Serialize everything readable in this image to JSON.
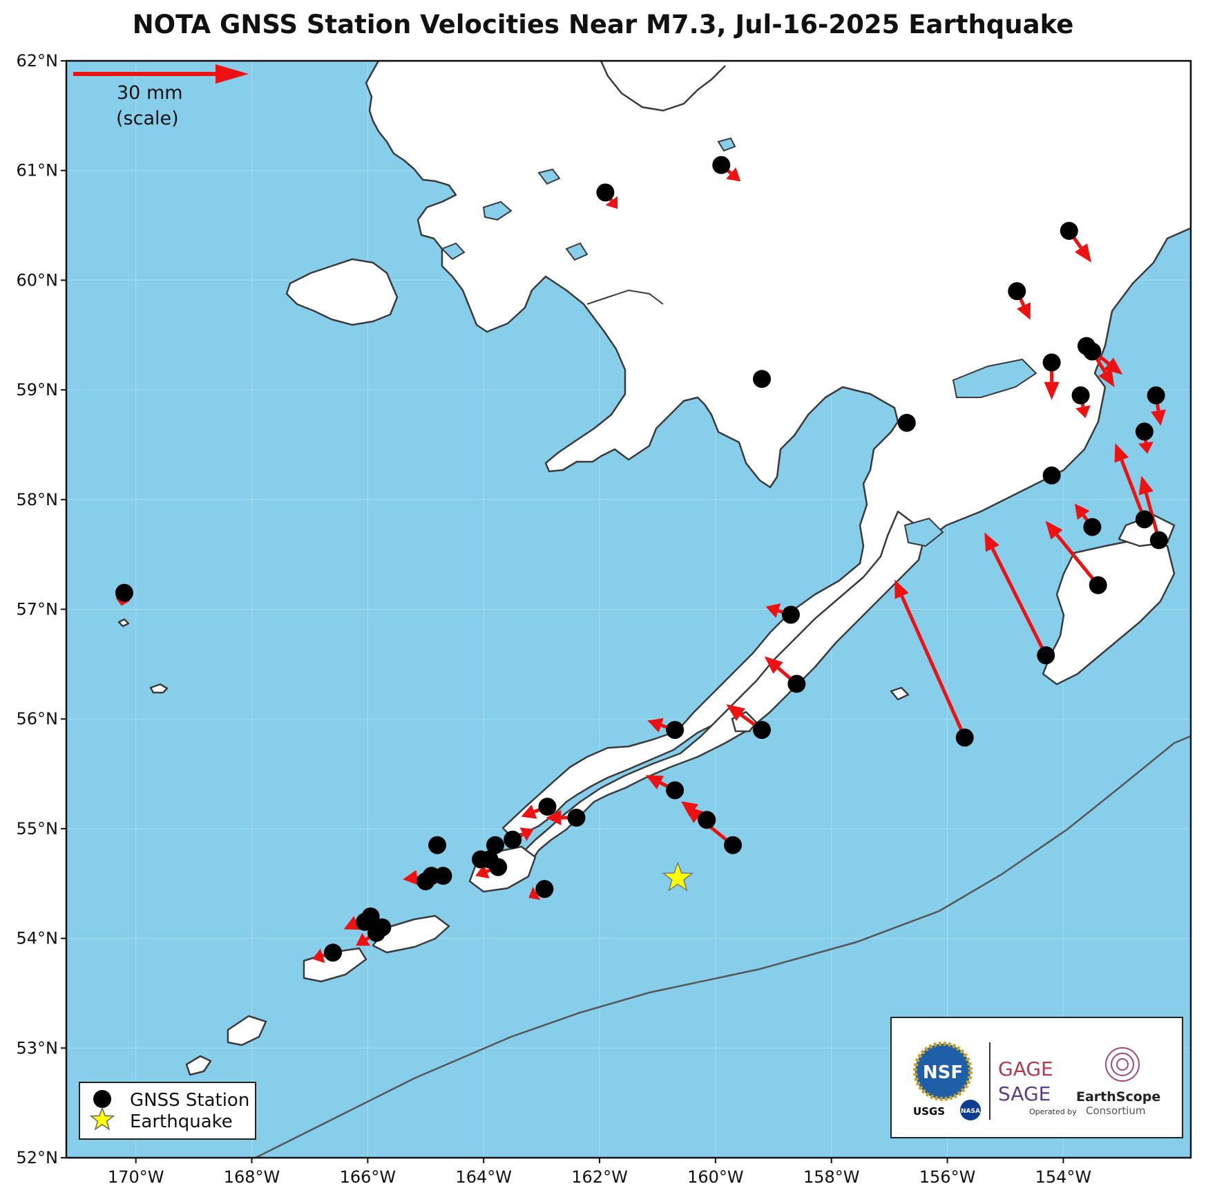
{
  "title": "NOTA GNSS Station Velocities Near M7.3, Jul-16-2025 Earthquake",
  "map": {
    "lon_range": [
      -171.2,
      -151.8
    ],
    "lat_range": [
      52.0,
      62.0
    ],
    "lat_ticks": [
      {
        "lat": 62,
        "label": "62°N"
      },
      {
        "lat": 61,
        "label": "61°N"
      },
      {
        "lat": 60,
        "label": "60°N"
      },
      {
        "lat": 59,
        "label": "59°N"
      },
      {
        "lat": 58,
        "label": "58°N"
      },
      {
        "lat": 57,
        "label": "57°N"
      },
      {
        "lat": 56,
        "label": "56°N"
      },
      {
        "lat": 55,
        "label": "55°N"
      },
      {
        "lat": 54,
        "label": "54°N"
      },
      {
        "lat": 53,
        "label": "53°N"
      },
      {
        "lat": 52,
        "label": "52°N"
      }
    ],
    "lon_ticks": [
      {
        "lon": -170,
        "label": "170°W"
      },
      {
        "lon": -168,
        "label": "168°W"
      },
      {
        "lon": -166,
        "label": "166°W"
      },
      {
        "lon": -164,
        "label": "164°W"
      },
      {
        "lon": -162,
        "label": "162°W"
      },
      {
        "lon": -160,
        "label": "160°W"
      },
      {
        "lon": -158,
        "label": "158°W"
      },
      {
        "lon": -156,
        "label": "156°W"
      },
      {
        "lon": -154,
        "label": "154°W"
      }
    ],
    "colors": {
      "ocean": "#87ceeb",
      "land": "#ffffff",
      "coast": "#3a3a3a",
      "arrow": "#ee1111",
      "station": "#000000",
      "quake": "#ffff00"
    }
  },
  "scale_arrow": {
    "length_mm": 30,
    "label_line1": "30 mm",
    "label_line2": "(scale)"
  },
  "earthquake": {
    "lon": -160.65,
    "lat": 54.55
  },
  "stations": [
    {
      "lon": -170.2,
      "lat": 57.15,
      "de": -0.5,
      "dn": -2.2
    },
    {
      "lon": -161.9,
      "lat": 60.8,
      "de": 2.1,
      "dn": -2.8
    },
    {
      "lon": -159.9,
      "lat": 61.05,
      "de": 3.3,
      "dn": -2.8
    },
    {
      "lon": -159.2,
      "lat": 59.1,
      "de": 0,
      "dn": 0
    },
    {
      "lon": -156.7,
      "lat": 58.7,
      "de": 0,
      "dn": 0
    },
    {
      "lon": -153.9,
      "lat": 60.45,
      "de": 3.8,
      "dn": -5.4
    },
    {
      "lon": -154.8,
      "lat": 59.9,
      "de": 2.3,
      "dn": -4.9
    },
    {
      "lon": -154.2,
      "lat": 59.25,
      "de": 0,
      "dn": -6.4
    },
    {
      "lon": -153.6,
      "lat": 59.4,
      "de": 6.2,
      "dn": -4.9
    },
    {
      "lon": -153.5,
      "lat": 59.35,
      "de": 3.8,
      "dn": -6.1
    },
    {
      "lon": -153.7,
      "lat": 58.95,
      "de": 0.8,
      "dn": -3.9
    },
    {
      "lon": -152.4,
      "lat": 58.95,
      "de": 0.8,
      "dn": -5.2
    },
    {
      "lon": -152.6,
      "lat": 58.62,
      "de": 0.5,
      "dn": -3.8
    },
    {
      "lon": -154.2,
      "lat": 58.22,
      "de": 0,
      "dn": 0
    },
    {
      "lon": -152.6,
      "lat": 57.82,
      "de": -5.0,
      "dn": 13.0
    },
    {
      "lon": -152.35,
      "lat": 57.63,
      "de": -3.0,
      "dn": 11.0
    },
    {
      "lon": -153.5,
      "lat": 57.75,
      "de": -3.0,
      "dn": 4.0
    },
    {
      "lon": -153.4,
      "lat": 57.22,
      "de": -9.0,
      "dn": 11.0
    },
    {
      "lon": -154.3,
      "lat": 56.58,
      "de": -10.5,
      "dn": 21.0
    },
    {
      "lon": -155.7,
      "lat": 55.83,
      "de": -12.0,
      "dn": 27.0
    },
    {
      "lon": -158.7,
      "lat": 56.95,
      "de": -4.3,
      "dn": 1.4
    },
    {
      "lon": -158.6,
      "lat": 56.32,
      "de": -5.5,
      "dn": 4.7
    },
    {
      "lon": -159.2,
      "lat": 55.9,
      "de": -6.1,
      "dn": 4.4
    },
    {
      "lon": -160.7,
      "lat": 55.9,
      "de": -4.7,
      "dn": 1.6
    },
    {
      "lon": -160.7,
      "lat": 55.35,
      "de": -5.0,
      "dn": 2.6
    },
    {
      "lon": -160.15,
      "lat": 55.08,
      "de": -4.4,
      "dn": 3.2
    },
    {
      "lon": -159.7,
      "lat": 54.85,
      "de": -8.3,
      "dn": 6.7
    },
    {
      "lon": -162.9,
      "lat": 55.2,
      "de": -4.5,
      "dn": -1.7
    },
    {
      "lon": -162.4,
      "lat": 55.1,
      "de": -5.2,
      "dn": 0.0
    },
    {
      "lon": -163.5,
      "lat": 54.9,
      "de": 3.6,
      "dn": 1.8
    },
    {
      "lon": -164.8,
      "lat": 54.85,
      "de": 0,
      "dn": 0
    },
    {
      "lon": -163.8,
      "lat": 54.85,
      "de": 0,
      "dn": 0
    },
    {
      "lon": -163.9,
      "lat": 54.72,
      "de": 0,
      "dn": 0
    },
    {
      "lon": -163.75,
      "lat": 54.65,
      "de": -3.9,
      "dn": -1.5
    },
    {
      "lon": -164.05,
      "lat": 54.72,
      "de": 0,
      "dn": 0
    },
    {
      "lon": -162.95,
      "lat": 54.45,
      "de": -2.7,
      "dn": -1.5
    },
    {
      "lon": -164.7,
      "lat": 54.57,
      "de": -1.5,
      "dn": 0.0
    },
    {
      "lon": -164.9,
      "lat": 54.57,
      "de": -4.9,
      "dn": -0.6
    },
    {
      "lon": -165.0,
      "lat": 54.52,
      "de": 3.4,
      "dn": 1.7
    },
    {
      "lon": -165.95,
      "lat": 54.2,
      "de": -4.6,
      "dn": -2.2
    },
    {
      "lon": -166.05,
      "lat": 54.15,
      "de": 0,
      "dn": 0
    },
    {
      "lon": -165.75,
      "lat": 54.1,
      "de": 0,
      "dn": 0
    },
    {
      "lon": -166.6,
      "lat": 53.87,
      "de": -3.5,
      "dn": -1.1
    },
    {
      "lon": -165.85,
      "lat": 54.05,
      "de": -3.5,
      "dn": -2.2
    }
  ],
  "legend": {
    "station_label": "GNSS Station",
    "earthquake_label": "Earthquake"
  },
  "logos": {
    "nsf": "NSF",
    "usgs": "USGS",
    "nasa": "NASA",
    "gage": "GAGE",
    "sage": "SAGE",
    "operated_by": "Operated by",
    "earthscope": "EarthScope",
    "consortium": "Consortium"
  }
}
